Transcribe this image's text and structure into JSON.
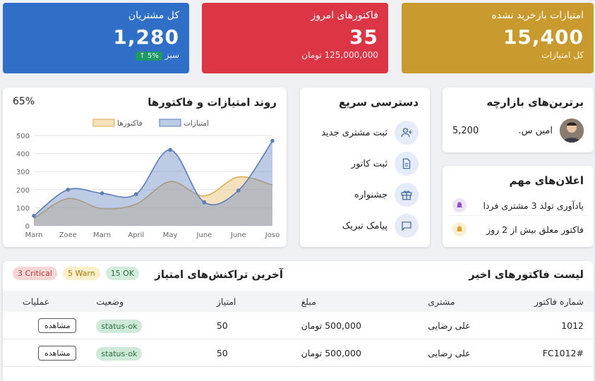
{
  "stats": {
    "customers": {
      "title": "کل مشتریان",
      "value": "1,280",
      "badge": "↑ 5%",
      "sub": "سبز",
      "color": "#2f6fc7"
    },
    "invoices": {
      "title": "فاکتورهای امروز",
      "value": "35",
      "sub": "125,000,000 تومان",
      "color": "#dc3545"
    },
    "points": {
      "title": "امتیازات بازخرید نشده",
      "value": "15,400",
      "sub": "کل امتیازات",
      "color": "#c99a2e"
    }
  },
  "chart": {
    "title": "روند امتیازات و فاکتورها",
    "percent": "65%",
    "legend": [
      "امتیازات",
      "فاکتورها"
    ]
  },
  "chart_data": {
    "type": "area",
    "categories": [
      "Marn",
      "Zoee",
      "Marn",
      "April",
      "May",
      "June",
      "June",
      "Joso"
    ],
    "series": [
      {
        "name": "امتیازات",
        "values": [
          55,
          200,
          180,
          175,
          420,
          130,
          195,
          470
        ],
        "color": "#5b7db6"
      },
      {
        "name": "فاکتورها",
        "values": [
          40,
          150,
          95,
          120,
          245,
          165,
          270,
          225
        ],
        "color": "#d8a94f"
      }
    ],
    "ylim": [
      0,
      500
    ],
    "yticks": [
      0,
      100,
      200,
      300,
      400,
      500
    ]
  },
  "quick_access": {
    "title": "دسترسی سریع",
    "items": [
      {
        "label": "ثبت مشتری جدید",
        "icon": "add-user-icon"
      },
      {
        "label": "ثبت کاتور",
        "icon": "document-icon"
      },
      {
        "label": "جشنواره",
        "icon": "gift-icon"
      },
      {
        "label": "پیامک تبریک",
        "icon": "message-icon"
      }
    ]
  },
  "top_customers": {
    "title": "برترین‌های بازارچه",
    "name": "امین س.",
    "score": "5,200"
  },
  "announcements": {
    "title": "اعلان‌های مهم",
    "items": [
      {
        "text": "یادآوری تولد 3 مشتری فردا",
        "icon": "bell-icon",
        "bg": "#ece3f7",
        "color": "#8a56c5"
      },
      {
        "text": "فاکتور معلق بیش از 2 روز",
        "icon": "bell-icon",
        "bg": "#fbeed2",
        "color": "#e0a020"
      }
    ]
  },
  "invoice_list": {
    "title": "لیست فاکتورهای اخیر",
    "transactions_title": "آخرین تراکنش‌های امتیاز",
    "pills": {
      "ok": "15 OK",
      "warn": "5 Warn",
      "critical": "3 Critical"
    },
    "columns": [
      "شماره فاکتور",
      "مشتری",
      "مبلغ",
      "امتیاز",
      "وضعیت",
      "عملیات"
    ],
    "rows": [
      {
        "id": "1012",
        "customer": "علی رضایی",
        "amount": "500,000 تومان",
        "points": "50",
        "status": "status-ok",
        "action": "مشاهده"
      },
      {
        "id": "#FC1012",
        "customer": "علی رضایی",
        "amount": "500,000 تومان",
        "points": "50",
        "status": "status-ok",
        "action": "مشاهده"
      }
    ]
  }
}
